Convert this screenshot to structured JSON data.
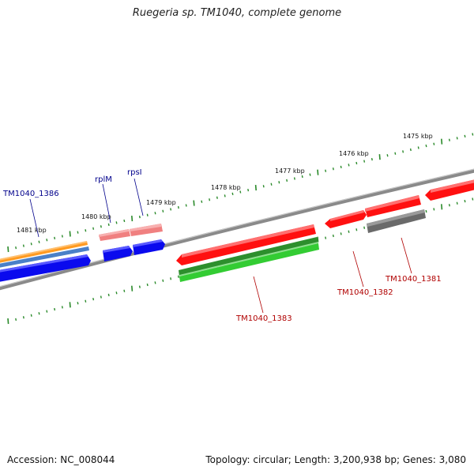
{
  "title": "Ruegeria sp. TM1040, complete genome",
  "footer": {
    "accession": "Accession: NC_008044",
    "summary": "Topology: circular; Length: 3,200,938 bp; Genes: 3,080"
  },
  "colors": {
    "backbone": "#7a7a7a",
    "tick": "#2a8a2a",
    "label_forward": "#00008b",
    "label_reverse": "#b00000",
    "gene_red": "#ff1010",
    "gene_pink": "#f08080",
    "gene_blue": "#0a0aee",
    "gene_orange": "#ff9a20",
    "gene_steel": "#4a80c8",
    "gene_green": "#33bb33",
    "gene_gray": "#6a6a6a"
  },
  "kbp_labels": [
    "1475 kbp",
    "1476 kbp",
    "1477 kbp",
    "1478 kbp",
    "1479 kbp",
    "1480 kbp",
    "1481 kbp"
  ],
  "gene_labels": {
    "forward": [
      "TM1040_1386",
      "rplM",
      "rpsI"
    ],
    "reverse": [
      "TM1040_1383",
      "TM1040_1382",
      "TM1040_1381"
    ]
  }
}
